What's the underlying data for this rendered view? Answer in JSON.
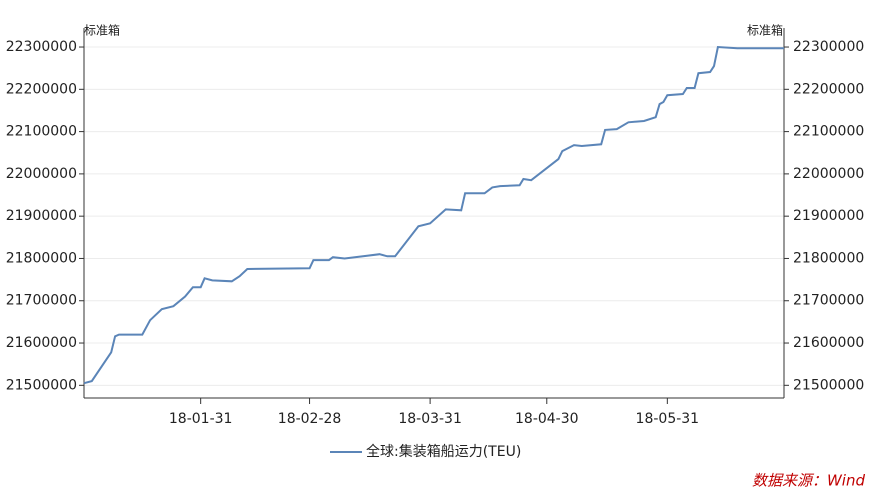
{
  "chart_data": {
    "type": "line",
    "y_unit": "标准箱",
    "y2_unit": "标准箱",
    "x": [
      "2018-01-01",
      "2018-01-03",
      "2018-01-08",
      "2018-01-09",
      "2018-01-10",
      "2018-01-16",
      "2018-01-18",
      "2018-01-21",
      "2018-01-24",
      "2018-01-27",
      "2018-01-29",
      "2018-01-31",
      "2018-02-01",
      "2018-02-03",
      "2018-02-08",
      "2018-02-10",
      "2018-02-12",
      "2018-02-28",
      "2018-03-01",
      "2018-03-05",
      "2018-03-06",
      "2018-03-09",
      "2018-03-18",
      "2018-03-20",
      "2018-03-22",
      "2018-03-28",
      "2018-03-31",
      "2018-04-04",
      "2018-04-08",
      "2018-04-09",
      "2018-04-14",
      "2018-04-16",
      "2018-04-18",
      "2018-04-23",
      "2018-04-24",
      "2018-04-26",
      "2018-05-03",
      "2018-05-04",
      "2018-05-07",
      "2018-05-09",
      "2018-05-14",
      "2018-05-15",
      "2018-05-18",
      "2018-05-21",
      "2018-05-25",
      "2018-05-28",
      "2018-05-29",
      "2018-05-30",
      "2018-05-31",
      "2018-06-04",
      "2018-06-05",
      "2018-06-07",
      "2018-06-08",
      "2018-06-11",
      "2018-06-12",
      "2018-06-13",
      "2018-06-18",
      "2018-06-30"
    ],
    "series": [
      {
        "name": "全球:集装箱船运力(TEU)",
        "color": "#5b85b8",
        "values": [
          21505000,
          21510000,
          21578000,
          21616000,
          21620000,
          21620000,
          21654000,
          21680000,
          21687000,
          21710000,
          21732000,
          21732000,
          21753000,
          21748000,
          21746000,
          21758000,
          21775000,
          21777000,
          21796000,
          21796000,
          21803000,
          21800000,
          21810000,
          21805000,
          21805000,
          21876000,
          21883000,
          21916000,
          21914000,
          21954000,
          21954000,
          21968000,
          21971000,
          21973000,
          21988000,
          21985000,
          22035000,
          22054000,
          22068000,
          22066000,
          22070000,
          22104000,
          22106000,
          22122000,
          22125000,
          22134000,
          22165000,
          22170000,
          22186000,
          22189000,
          22203000,
          22203000,
          22238000,
          22241000,
          22255000,
          22300000,
          22297000,
          22297000
        ]
      }
    ],
    "xlim": [
      "2018-01-01",
      "2018-06-30"
    ],
    "xticks": [
      {
        "value": "2018-01-31",
        "label": "18-01-31"
      },
      {
        "value": "2018-02-28",
        "label": "18-02-28"
      },
      {
        "value": "2018-03-31",
        "label": "18-03-31"
      },
      {
        "value": "2018-04-30",
        "label": "18-04-30"
      },
      {
        "value": "2018-05-31",
        "label": "18-05-31"
      }
    ],
    "ylim": [
      21470000,
      22345000
    ],
    "yticks": [
      21500000,
      21600000,
      21700000,
      21800000,
      21900000,
      22000000,
      22100000,
      22200000,
      22300000
    ],
    "y2lim": [
      21470000,
      22345000
    ],
    "y2ticks": [
      21500000,
      21600000,
      21700000,
      21800000,
      21900000,
      22000000,
      22100000,
      22200000,
      22300000
    ],
    "grid": true,
    "legend": "bottom",
    "source": "数据来源：Wind"
  }
}
